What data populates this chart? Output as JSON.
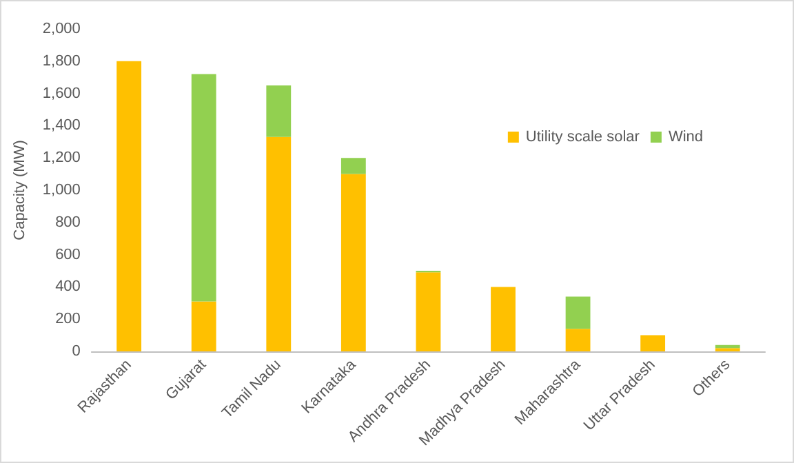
{
  "chart_data": {
    "type": "bar",
    "stacked": true,
    "ylabel": "Capacity (MW)",
    "categories": [
      "Rajasthan",
      "Gujarat",
      "Tamil Nadu",
      "Karnataka",
      "Andhra Pradesh",
      "Madhya Pradesh",
      "Maharashtra",
      "Uttar Pradesh",
      "Others"
    ],
    "series": [
      {
        "name": "Utility scale solar",
        "color": "#ffc000",
        "values": [
          1800,
          310,
          1330,
          1100,
          490,
          400,
          140,
          100,
          20
        ]
      },
      {
        "name": "Wind",
        "color": "#92d050",
        "values": [
          0,
          1410,
          320,
          100,
          10,
          0,
          200,
          0,
          20
        ]
      }
    ],
    "ylim": [
      0,
      2000
    ],
    "yticks": [
      0,
      200,
      400,
      600,
      800,
      {
        "value": 1000,
        "label": "1,000"
      },
      {
        "value": 1200,
        "label": "1,200"
      },
      {
        "value": 1400,
        "label": "1,400"
      },
      {
        "value": 1600,
        "label": "1,600"
      },
      {
        "value": 1800,
        "label": "1,800"
      },
      {
        "value": 2000,
        "label": "2,000"
      }
    ],
    "grid": false,
    "legend": "right"
  }
}
